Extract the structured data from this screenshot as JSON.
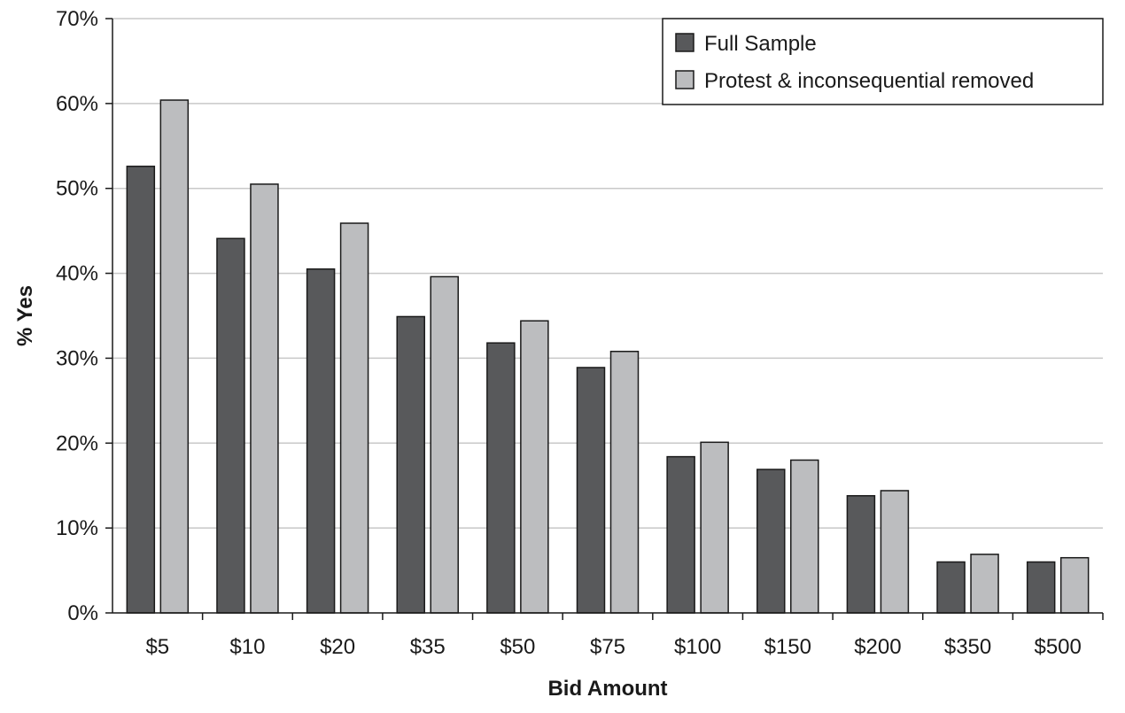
{
  "chart_data": {
    "type": "bar",
    "xlabel": "Bid Amount",
    "ylabel": "% Yes",
    "categories": [
      "$5",
      "$10",
      "$20",
      "$35",
      "$50",
      "$75",
      "$100",
      "$150",
      "$200",
      "$350",
      "$500"
    ],
    "series": [
      {
        "name": "Full Sample",
        "color": "#58595b",
        "values": [
          52.6,
          44.1,
          40.5,
          34.9,
          31.8,
          28.9,
          18.4,
          16.9,
          13.8,
          6.0,
          6.0
        ]
      },
      {
        "name": "Protest & inconsequential removed",
        "color": "#bcbdbf",
        "values": [
          60.4,
          50.5,
          45.9,
          39.6,
          34.4,
          30.8,
          20.1,
          18.0,
          14.4,
          6.9,
          6.5
        ]
      }
    ],
    "ylim": [
      0,
      70
    ],
    "yticks": [
      0,
      10,
      20,
      30,
      40,
      50,
      60,
      70
    ],
    "ytick_labels": [
      "0%",
      "10%",
      "20%",
      "30%",
      "40%",
      "50%",
      "60%",
      "70%"
    ],
    "grid": true,
    "legend_position": "top-right"
  }
}
